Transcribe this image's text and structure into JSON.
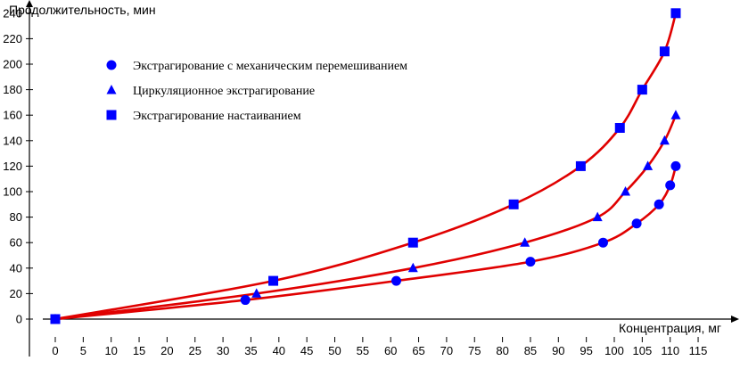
{
  "chart_data": {
    "type": "line",
    "xlabel": "Концентрация, мг",
    "ylabel": "Продолжительность, мин",
    "xlim": [
      0,
      115
    ],
    "ylim": [
      0,
      240
    ],
    "xticks": [
      0,
      5,
      10,
      15,
      20,
      25,
      30,
      35,
      40,
      45,
      50,
      55,
      60,
      65,
      70,
      75,
      80,
      85,
      90,
      95,
      100,
      105,
      110,
      115
    ],
    "yticks": [
      0,
      20,
      40,
      60,
      80,
      100,
      120,
      140,
      160,
      180,
      200,
      220,
      240
    ],
    "grid": false,
    "legend_position": "top-left",
    "line_color": "#e00000",
    "marker_color": "#0000ff",
    "series": [
      {
        "name": "Экстрагирование с механическим перемешиванием",
        "marker": "circle",
        "x": [
          0,
          34,
          61,
          85,
          98,
          104,
          108,
          110,
          111
        ],
        "y": [
          0,
          15,
          30,
          45,
          60,
          75,
          90,
          105,
          120
        ]
      },
      {
        "name": "Циркуляционное экстрагирование",
        "marker": "triangle",
        "x": [
          0,
          36,
          64,
          84,
          97,
          102,
          106,
          109,
          111
        ],
        "y": [
          0,
          20,
          40,
          60,
          80,
          100,
          120,
          140,
          160
        ]
      },
      {
        "name": "Экстрагирование настаиванием",
        "marker": "square",
        "x": [
          0,
          39,
          64,
          82,
          94,
          101,
          105,
          109,
          111
        ],
        "y": [
          0,
          30,
          60,
          90,
          120,
          150,
          180,
          210,
          240
        ]
      }
    ]
  }
}
